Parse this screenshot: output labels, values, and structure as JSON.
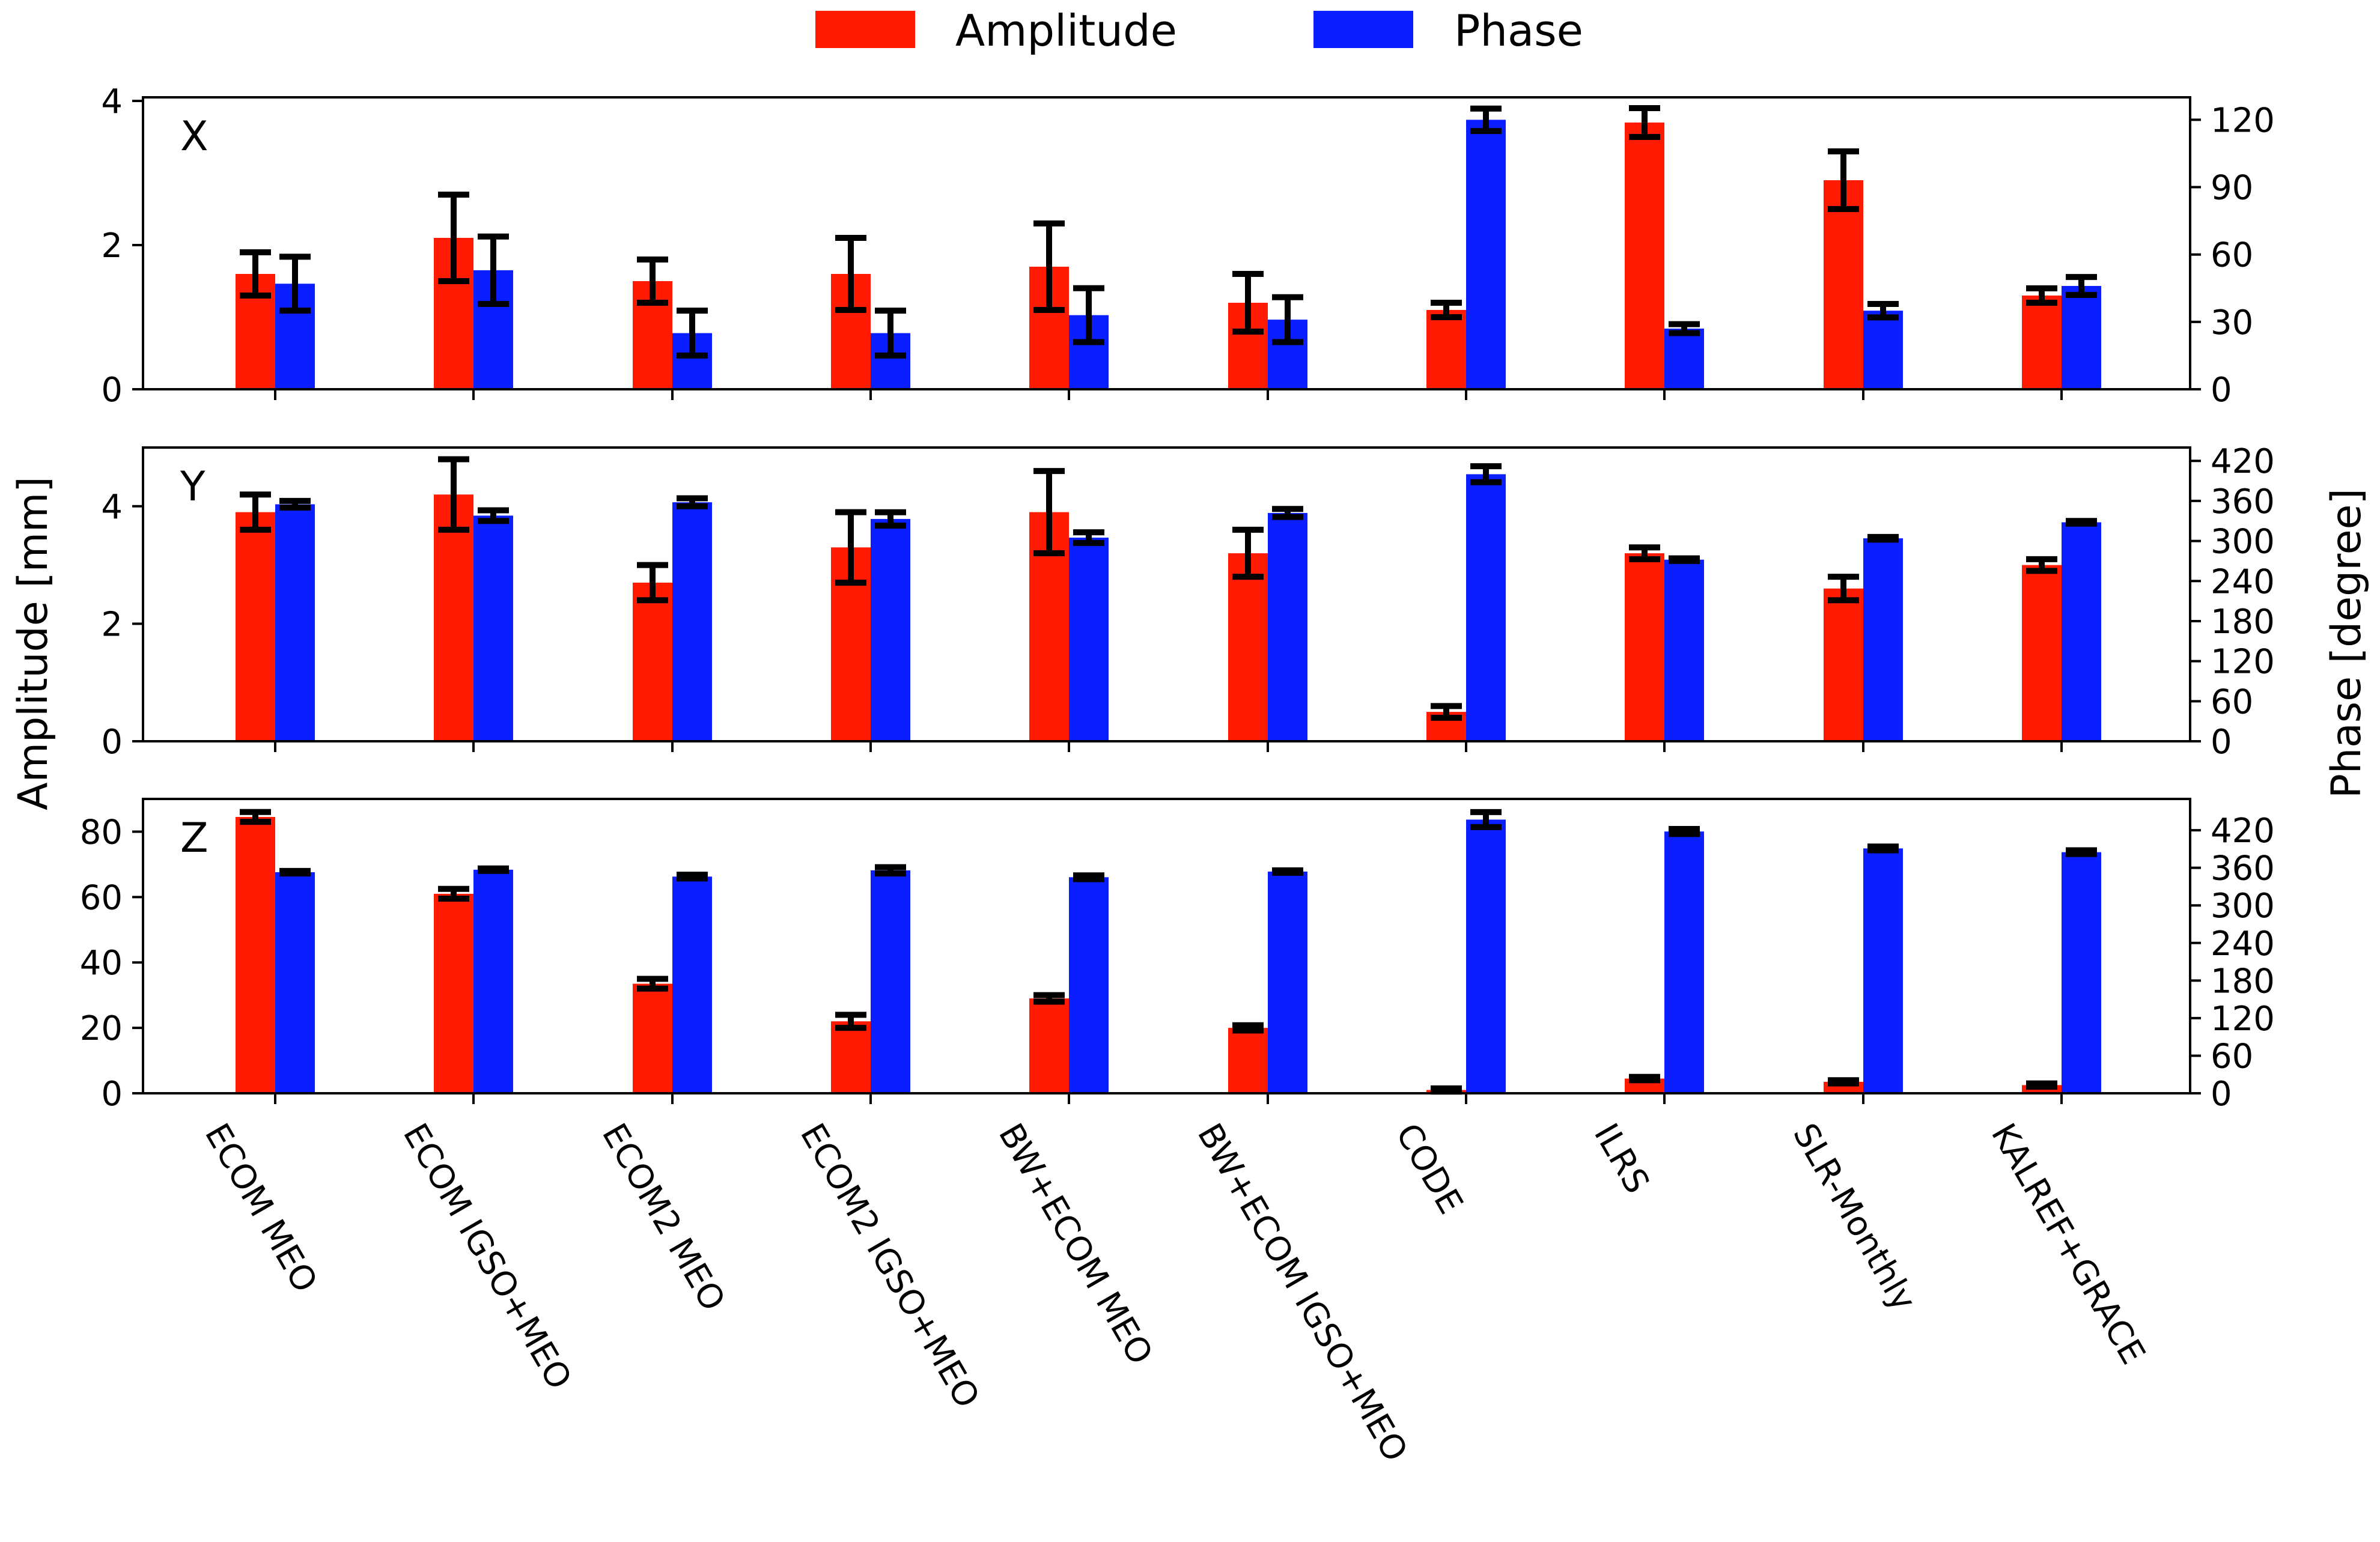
{
  "chart_data": {
    "type": "bar",
    "legend": [
      "Amplitude",
      "Phase"
    ],
    "legend_position": "top-center",
    "colors": {
      "Amplitude": "#ff1a00",
      "Phase": "#0a1eff",
      "error_bar": "#000000"
    },
    "ylabel_left": "Amplitude [mm]",
    "ylabel_right": "Phase [degree]",
    "categories": [
      "ECOM MEO",
      "ECOM IGSO+MEO",
      "ECOM2 MEO",
      "ECOM2 IGSO+MEO",
      "BW+ECOM MEO",
      "BW+ECOM IGSO+MEO",
      "CODE",
      "ILRS",
      "SLR-Monthly",
      "KALREF+GRACE"
    ],
    "panels": [
      {
        "label": "X",
        "left_ylim": [
          0,
          4.05
        ],
        "left_ticks": [
          0,
          2,
          4
        ],
        "right_ylim": [
          0,
          130
        ],
        "right_ticks": [
          0,
          30,
          60,
          90,
          120
        ],
        "amplitude": [
          1.6,
          2.1,
          1.5,
          1.6,
          1.7,
          1.2,
          1.1,
          3.7,
          2.9,
          1.3
        ],
        "amplitude_err": [
          0.3,
          0.6,
          0.3,
          0.5,
          0.6,
          0.4,
          0.1,
          0.2,
          0.4,
          0.1
        ],
        "phase": [
          47,
          53,
          25,
          25,
          33,
          31,
          120,
          27,
          35,
          46
        ],
        "phase_err": [
          12,
          15,
          10,
          10,
          12,
          10,
          5,
          2,
          3,
          4
        ]
      },
      {
        "label": "Y",
        "left_ylim": [
          0,
          5.0
        ],
        "left_ticks": [
          0,
          2,
          4
        ],
        "right_ylim": [
          0,
          440
        ],
        "right_ticks": [
          0,
          60,
          120,
          180,
          240,
          300,
          360,
          420
        ],
        "amplitude": [
          3.9,
          4.2,
          2.7,
          3.3,
          3.9,
          3.2,
          0.5,
          3.2,
          2.6,
          3.0
        ],
        "amplitude_err": [
          0.3,
          0.6,
          0.3,
          0.6,
          0.7,
          0.4,
          0.1,
          0.1,
          0.2,
          0.1
        ],
        "phase": [
          355,
          338,
          358,
          333,
          305,
          342,
          400,
          272,
          304,
          328
        ],
        "phase_err": [
          5,
          8,
          6,
          10,
          8,
          6,
          12,
          2,
          2,
          2
        ]
      },
      {
        "label": "Z",
        "left_ylim": [
          0,
          90
        ],
        "left_ticks": [
          0,
          20,
          40,
          60,
          80
        ],
        "right_ylim": [
          0,
          470
        ],
        "right_ticks": [
          0,
          60,
          120,
          180,
          240,
          300,
          360,
          420
        ],
        "amplitude": [
          84.5,
          61,
          33.5,
          22,
          29,
          20,
          1,
          4.5,
          3.5,
          2.5
        ],
        "amplitude_err": [
          1.5,
          1.5,
          1.5,
          2.0,
          1.0,
          0.8,
          0.5,
          0.5,
          0.5,
          0.5
        ],
        "phase": [
          353,
          357,
          346,
          356,
          345,
          354,
          437,
          418,
          391,
          385
        ],
        "phase_err": [
          2,
          2,
          3,
          5,
          3,
          2,
          12,
          4,
          3,
          3
        ]
      }
    ]
  }
}
